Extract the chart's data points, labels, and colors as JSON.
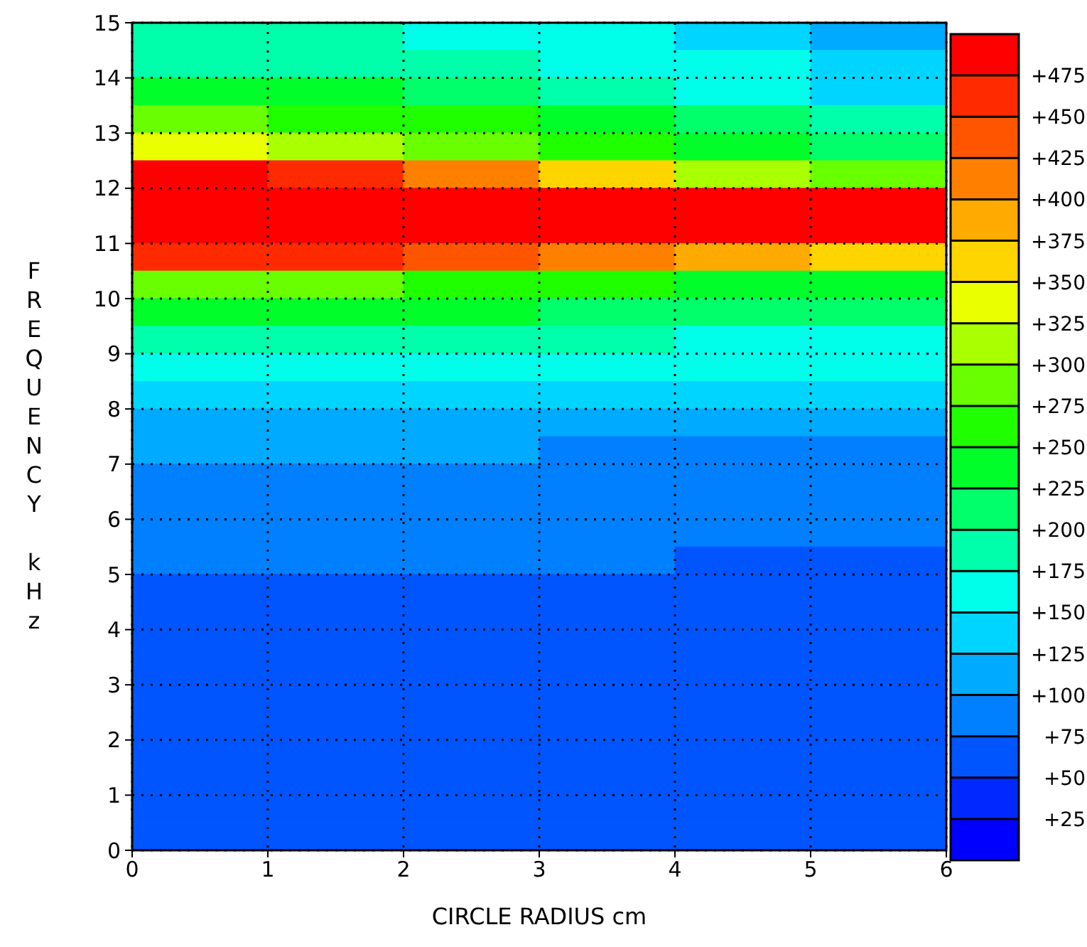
{
  "chart_data": {
    "type": "heatmap",
    "xlabel": "CIRCLE RADIUS cm",
    "ylabel": "FREQUENCY kHz",
    "xlim": [
      0,
      6
    ],
    "ylim": [
      0,
      15
    ],
    "xticks": [
      0,
      1,
      2,
      3,
      4,
      5,
      6
    ],
    "yticks": [
      0,
      1,
      2,
      3,
      4,
      5,
      6,
      7,
      8,
      9,
      10,
      11,
      12,
      13,
      14,
      15
    ],
    "grid": true,
    "clim": [
      0,
      500
    ],
    "cticks": [
      {
        "value": 25,
        "label": "+25"
      },
      {
        "value": 50,
        "label": "+50"
      },
      {
        "value": 75,
        "label": "+75"
      },
      {
        "value": 100,
        "label": "+100"
      },
      {
        "value": 125,
        "label": "+125"
      },
      {
        "value": 150,
        "label": "+150"
      },
      {
        "value": 175,
        "label": "+175"
      },
      {
        "value": 200,
        "label": "+200"
      },
      {
        "value": 225,
        "label": "+225"
      },
      {
        "value": 250,
        "label": "+250"
      },
      {
        "value": 275,
        "label": "+275"
      },
      {
        "value": 300,
        "label": "+300"
      },
      {
        "value": 325,
        "label": "+325"
      },
      {
        "value": 350,
        "label": "+350"
      },
      {
        "value": 375,
        "label": "+375"
      },
      {
        "value": 400,
        "label": "+400"
      },
      {
        "value": 425,
        "label": "+425"
      },
      {
        "value": 450,
        "label": "+450"
      },
      {
        "value": 475,
        "label": "+475"
      }
    ],
    "colors": [
      "#0000ff",
      "#0028ff",
      "#0055ff",
      "#0080ff",
      "#00aaff",
      "#00d5ff",
      "#00ffea",
      "#00ffaa",
      "#00ff6a",
      "#00ff2a",
      "#20ff00",
      "#6aff00",
      "#aaff00",
      "#eaff00",
      "#ffd500",
      "#ffaa00",
      "#ff8000",
      "#ff5500",
      "#ff2a00",
      "#ff0000"
    ],
    "cells": [
      [
        187.5,
        187.5,
        162.5,
        162.5,
        137.5,
        112.5
      ],
      [
        187.5,
        187.5,
        187.5,
        162.5,
        162.5,
        137.5
      ],
      [
        237.5,
        237.5,
        212.5,
        187.5,
        162.5,
        137.5
      ],
      [
        287.5,
        262.5,
        262.5,
        237.5,
        212.5,
        187.5
      ],
      [
        337.5,
        312.5,
        287.5,
        262.5,
        237.5,
        212.5
      ],
      [
        487.5,
        462.5,
        412.5,
        362.5,
        312.5,
        287.5
      ],
      [
        487.5,
        487.5,
        487.5,
        487.5,
        487.5,
        487.5
      ],
      [
        487.5,
        487.5,
        487.5,
        487.5,
        487.5,
        487.5
      ],
      [
        462.5,
        462.5,
        437.5,
        412.5,
        387.5,
        362.5
      ],
      [
        287.5,
        287.5,
        262.5,
        262.5,
        237.5,
        237.5
      ],
      [
        237.5,
        237.5,
        237.5,
        212.5,
        212.5,
        212.5
      ],
      [
        187.5,
        187.5,
        187.5,
        187.5,
        162.5,
        162.5
      ],
      [
        162.5,
        162.5,
        162.5,
        162.5,
        162.5,
        162.5
      ],
      [
        137.5,
        137.5,
        137.5,
        137.5,
        137.5,
        137.5
      ],
      [
        112.5,
        112.5,
        112.5,
        112.5,
        112.5,
        112.5
      ],
      [
        112.5,
        112.5,
        112.5,
        87.5,
        87.5,
        87.5
      ],
      [
        87.5,
        87.5,
        87.5,
        87.5,
        87.5,
        87.5
      ],
      [
        87.5,
        87.5,
        87.5,
        87.5,
        87.5,
        87.5
      ],
      [
        87.5,
        87.5,
        87.5,
        87.5,
        87.5,
        87.5
      ],
      [
        87.5,
        87.5,
        87.5,
        87.5,
        62.5,
        62.5
      ],
      [
        62.5,
        62.5,
        62.5,
        62.5,
        62.5,
        62.5
      ],
      [
        62.5,
        62.5,
        62.5,
        62.5,
        62.5,
        62.5
      ],
      [
        62.5,
        62.5,
        62.5,
        62.5,
        62.5,
        62.5
      ],
      [
        62.5,
        62.5,
        62.5,
        62.5,
        62.5,
        62.5
      ],
      [
        62.5,
        62.5,
        62.5,
        62.5,
        62.5,
        62.5
      ],
      [
        62.5,
        62.5,
        62.5,
        62.5,
        62.5,
        62.5
      ],
      [
        62.5,
        62.5,
        62.5,
        62.5,
        62.5,
        62.5
      ],
      [
        62.5,
        62.5,
        62.5,
        62.5,
        62.5,
        62.5
      ],
      [
        62.5,
        62.5,
        62.5,
        62.5,
        62.5,
        62.5
      ],
      [
        62.5,
        62.5,
        62.5,
        62.5,
        62.5,
        62.5
      ]
    ]
  }
}
